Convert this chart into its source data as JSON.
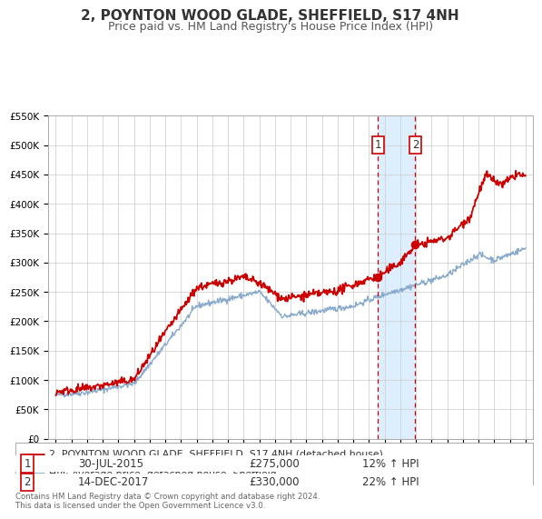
{
  "title": "2, POYNTON WOOD GLADE, SHEFFIELD, S17 4NH",
  "subtitle": "Price paid vs. HM Land Registry's House Price Index (HPI)",
  "legend_line1": "2, POYNTON WOOD GLADE, SHEFFIELD, S17 4NH (detached house)",
  "legend_line2": "HPI: Average price, detached house, Sheffield",
  "footnote": "Contains HM Land Registry data © Crown copyright and database right 2024.\nThis data is licensed under the Open Government Licence v3.0.",
  "transaction1_date": "30-JUL-2015",
  "transaction1_price": "£275,000",
  "transaction1_hpi": "12% ↑ HPI",
  "transaction2_date": "14-DEC-2017",
  "transaction2_price": "£330,000",
  "transaction2_hpi": "22% ↑ HPI",
  "vline1_x": 2015.58,
  "vline2_x": 2017.96,
  "dot1_x": 2015.58,
  "dot1_y": 275000,
  "dot2_x": 2017.96,
  "dot2_y": 330000,
  "ylim": [
    0,
    550000
  ],
  "xlim": [
    1994.5,
    2025.5
  ],
  "red_color": "#cc0000",
  "blue_color": "#88aacc",
  "shade_color": "#ddeeff",
  "background_color": "#ffffff",
  "grid_color": "#cccccc",
  "title_fontsize": 11,
  "subtitle_fontsize": 9,
  "text_color": "#333333"
}
